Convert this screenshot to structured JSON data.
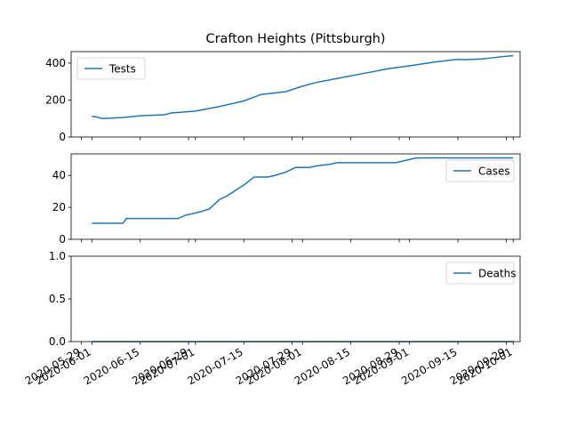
{
  "chart_data": [
    {
      "type": "line",
      "title": "Crafton Heights (Pittsburgh)",
      "xlim": [
        "2020-05-26",
        "2020-10-03"
      ],
      "ylim": [
        0,
        462
      ],
      "yticks": [
        0,
        200,
        400
      ],
      "xticks": [
        "2020-05-29",
        "2020-06-01",
        "2020-06-15",
        "2020-06-29",
        "2020-07-01",
        "2020-07-15",
        "2020-07-29",
        "2020-08-01",
        "2020-08-15",
        "2020-08-29",
        "2020-09-01",
        "2020-09-15",
        "2020-09-29",
        "2020-10-01"
      ],
      "legend": "upper left",
      "series": [
        {
          "name": "Tests",
          "color": "#1f77b4",
          "x": [
            "2020-06-01",
            "2020-06-02",
            "2020-06-04",
            "2020-06-10",
            "2020-06-15",
            "2020-06-22",
            "2020-06-24",
            "2020-07-01",
            "2020-07-08",
            "2020-07-15",
            "2020-07-20",
            "2020-07-27",
            "2020-08-01",
            "2020-08-05",
            "2020-08-12",
            "2020-08-19",
            "2020-08-26",
            "2020-09-01",
            "2020-09-08",
            "2020-09-15",
            "2020-09-17",
            "2020-09-22",
            "2020-09-29",
            "2020-10-01"
          ],
          "values": [
            110,
            110,
            100,
            105,
            115,
            120,
            130,
            140,
            165,
            195,
            230,
            245,
            275,
            295,
            320,
            345,
            370,
            385,
            405,
            420,
            418,
            422,
            437,
            440
          ]
        }
      ]
    },
    {
      "type": "line",
      "xlim": [
        "2020-05-26",
        "2020-10-03"
      ],
      "ylim": [
        0,
        53.5
      ],
      "yticks": [
        0,
        20,
        40
      ],
      "xticks": [
        "2020-05-29",
        "2020-06-01",
        "2020-06-15",
        "2020-06-29",
        "2020-07-01",
        "2020-07-15",
        "2020-07-29",
        "2020-08-01",
        "2020-08-15",
        "2020-08-29",
        "2020-09-01",
        "2020-09-15",
        "2020-09-29",
        "2020-10-01"
      ],
      "legend": "upper right",
      "series": [
        {
          "name": "Cases",
          "color": "#1f77b4",
          "x": [
            "2020-06-01",
            "2020-06-10",
            "2020-06-11",
            "2020-06-26",
            "2020-06-28",
            "2020-07-02",
            "2020-07-05",
            "2020-07-08",
            "2020-07-10",
            "2020-07-15",
            "2020-07-18",
            "2020-07-22",
            "2020-07-24",
            "2020-07-27",
            "2020-07-30",
            "2020-08-03",
            "2020-08-05",
            "2020-08-09",
            "2020-08-11",
            "2020-08-28",
            "2020-09-01",
            "2020-09-03",
            "2020-10-01"
          ],
          "values": [
            10,
            10,
            13,
            13,
            15,
            17,
            19,
            25,
            27,
            34,
            39,
            39,
            40,
            42,
            45,
            45,
            46,
            47,
            48,
            48,
            50,
            51,
            51
          ]
        }
      ]
    },
    {
      "type": "line",
      "xlim": [
        "2020-05-26",
        "2020-10-03"
      ],
      "ylim": [
        0,
        1
      ],
      "yticks": [
        {
          "value": 0,
          "label": "0.0"
        },
        {
          "value": 0.5,
          "label": "0.5"
        },
        {
          "value": 1,
          "label": "1.0"
        }
      ],
      "xticks": [
        "2020-05-29",
        "2020-06-01",
        "2020-06-15",
        "2020-06-29",
        "2020-07-01",
        "2020-07-15",
        "2020-07-29",
        "2020-08-01",
        "2020-08-15",
        "2020-08-29",
        "2020-09-01",
        "2020-09-15",
        "2020-09-29",
        "2020-10-01"
      ],
      "legend": "upper right",
      "series": [
        {
          "name": "Deaths",
          "color": "#1f77b4",
          "x": [
            "2020-06-01",
            "2020-10-01"
          ],
          "values": [
            0,
            0
          ]
        }
      ]
    }
  ]
}
